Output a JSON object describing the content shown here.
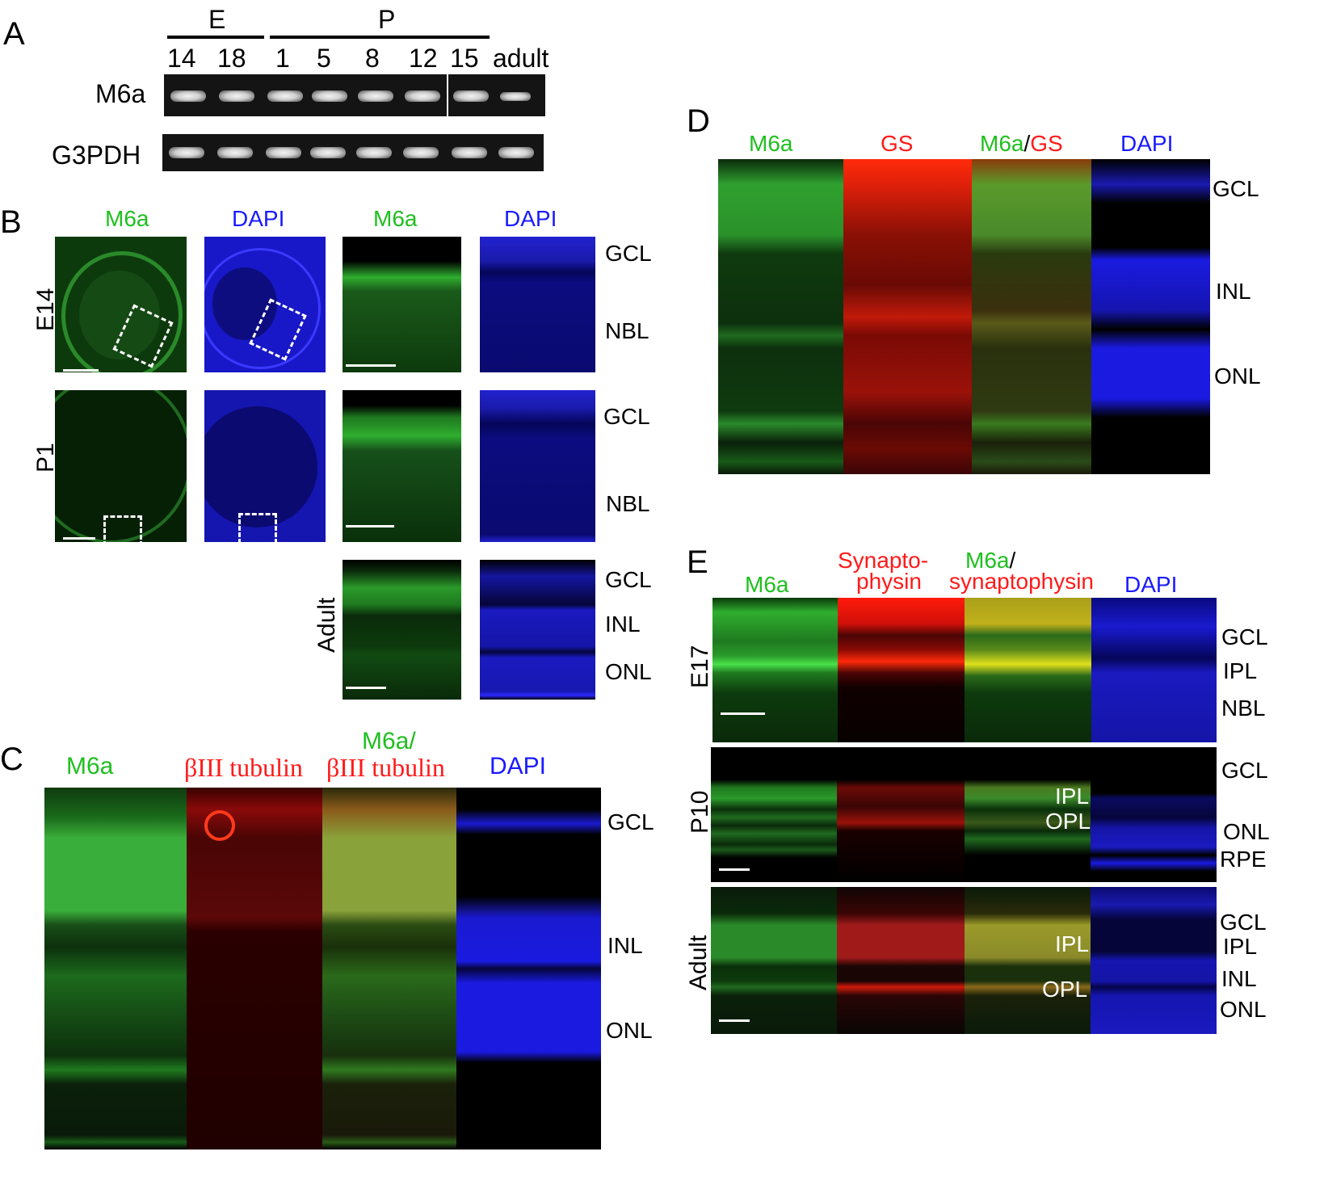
{
  "panel_a": {
    "letter": "A",
    "group_e": "E",
    "group_p": "P",
    "lanes": [
      "14",
      "18",
      "1",
      "5",
      "8",
      "12",
      "15",
      "adult"
    ],
    "rows": [
      "M6a",
      "G3PDH"
    ]
  },
  "panel_b": {
    "letter": "B",
    "col_labels": [
      "M6a",
      "DAPI",
      "M6a",
      "DAPI"
    ],
    "row_labels": [
      "E14",
      "P1",
      "Adult"
    ],
    "e14_layers": [
      "GCL",
      "NBL"
    ],
    "p1_layers": [
      "GCL",
      "NBL"
    ],
    "adult_layers": [
      "GCL",
      "INL",
      "ONL"
    ]
  },
  "panel_c": {
    "letter": "C",
    "col1": "M6a",
    "col2": "βIII tubulin",
    "col3_top": "M6a/",
    "col3_bottom": "βIII tubulin",
    "col4": "DAPI",
    "layers": [
      "GCL",
      "INL",
      "ONL"
    ]
  },
  "panel_d": {
    "letter": "D",
    "col1": "M6a",
    "col2": "GS",
    "col3_green": "M6a",
    "col3_slash": "/",
    "col3_red": "GS",
    "col4": "DAPI",
    "layers": [
      "GCL",
      "INL",
      "ONL"
    ]
  },
  "panel_e": {
    "letter": "E",
    "col1": "M6a",
    "col2_top": "Synapto-",
    "col2_bottom": "physin",
    "col3_top": "M6a",
    "col3_slash": "/",
    "col3_bottom": "synaptophysin",
    "col4": "DAPI",
    "row_labels": [
      "E17",
      "P10",
      "Adult"
    ],
    "e17_layers": [
      "GCL",
      "IPL",
      "NBL"
    ],
    "p10_layers": [
      "GCL",
      "ONL",
      "RPE"
    ],
    "p10_inner": [
      "IPL",
      "OPL"
    ],
    "adult_layers": [
      "GCL",
      "IPL",
      "INL",
      "ONL"
    ],
    "adult_inner": [
      "IPL",
      "OPL"
    ]
  }
}
